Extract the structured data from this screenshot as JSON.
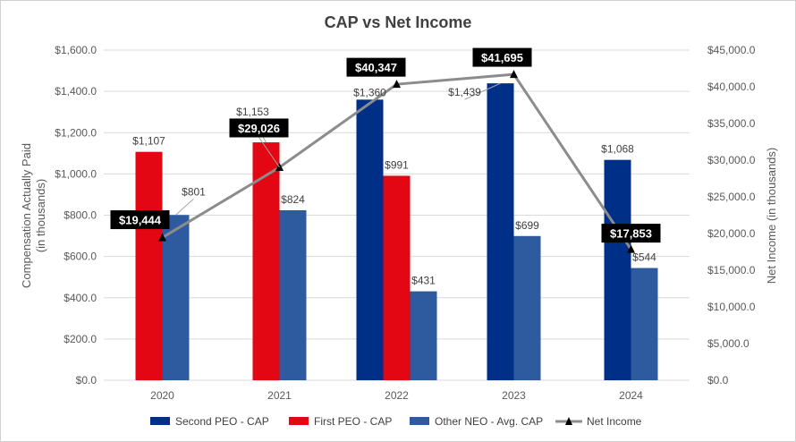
{
  "chart_data": {
    "type": "bar",
    "title": "CAP vs Net Income",
    "categories": [
      "2020",
      "2021",
      "2022",
      "2023",
      "2024"
    ],
    "ylabel": "Compensation Actually Paid",
    "ylabel2": "(in thousands)",
    "y2label": "Net Income (in thousands)",
    "ylim": [
      0,
      1600
    ],
    "y2lim": [
      0,
      45000
    ],
    "yticks": [
      "$0.0",
      "$200.0",
      "$400.0",
      "$600.0",
      "$800.0",
      "$1,000.0",
      "$1,200.0",
      "$1,400.0",
      "$1,600.0"
    ],
    "y2ticks": [
      "$0.0",
      "$5,000.0",
      "$10,000.0",
      "$15,000.0",
      "$20,000.0",
      "$25,000.0",
      "$30,000.0",
      "$35,000.0",
      "$40,000.0",
      "$45,000.0"
    ],
    "series": [
      {
        "name": "Second PEO - CAP",
        "color": "#002f87",
        "values": [
          null,
          null,
          1360,
          1439,
          1068
        ],
        "labels": [
          "",
          "",
          "$1,360",
          "$1,439",
          "$1,068"
        ]
      },
      {
        "name": "First PEO - CAP",
        "color": "#e30613",
        "values": [
          1107,
          1153,
          991,
          null,
          null
        ],
        "labels": [
          "$1,107",
          "$1,153",
          "$991",
          "",
          ""
        ]
      },
      {
        "name": "Other NEO - Avg. CAP",
        "color": "#2e5aa0",
        "values": [
          801,
          824,
          431,
          699,
          544
        ],
        "labels": [
          "$801",
          "$824",
          "$431",
          "$699",
          "$544"
        ]
      }
    ],
    "line_series": {
      "name": "Net Income",
      "color": "#8c8c8c",
      "axis": "secondary",
      "values": [
        19444,
        29026,
        40347,
        41695,
        17853
      ],
      "labels": [
        "$19,444",
        "$29,026",
        "$40,347",
        "$41,695",
        "$17,853"
      ]
    },
    "legend_position": "bottom"
  }
}
